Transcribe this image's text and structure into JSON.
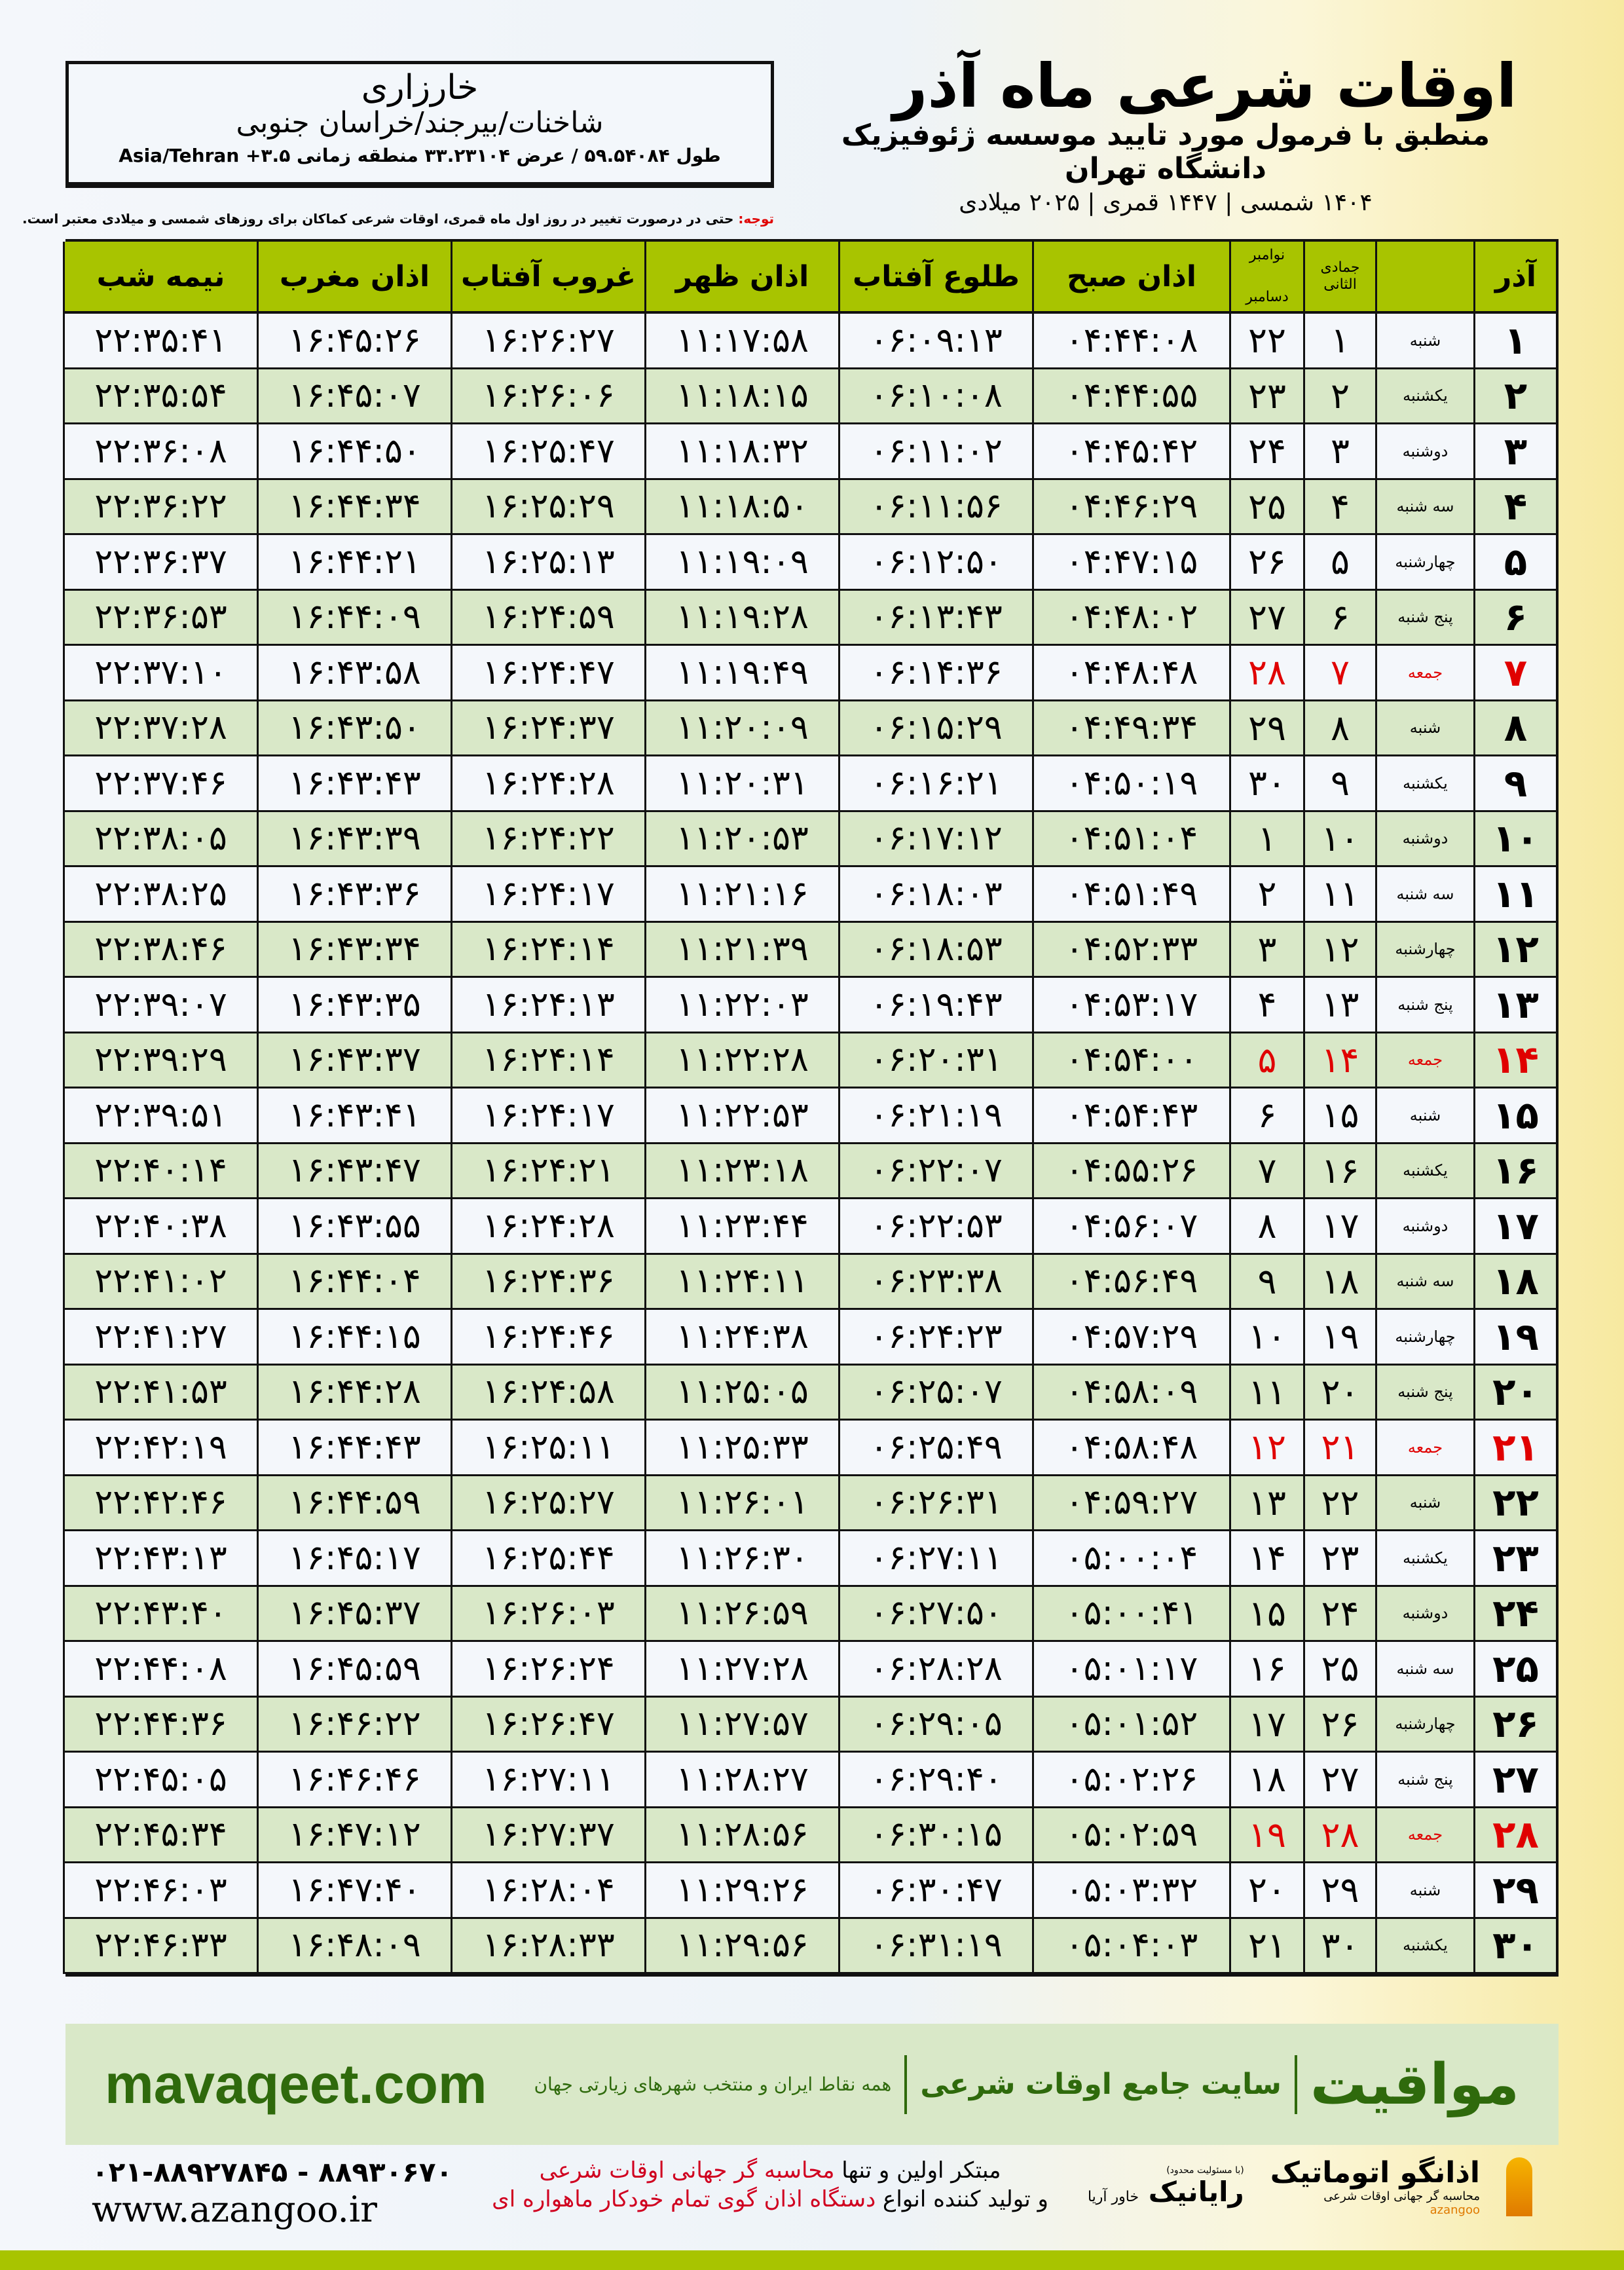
{
  "header": {
    "city": "خارزاری",
    "province": "شاخنات/بیرجند/خراسان جنوبی",
    "coords": "طول ۵۹.۵۴۰۸۴ / عرض ۳۳.۲۳۱۰۴ منطقه زمانی ۳.۵+ Asia/Tehran"
  },
  "title": {
    "main": "اوقات شرعی ماه آذر",
    "subtitle": "منطبق با فرمول مورد تایید موسسه ژئوفیزیک دانشگاه تهران",
    "years": "۱۴۰۴ شمسی | ۱۴۴۷ قمری | ۲۰۲۵ میلادی"
  },
  "note": {
    "label": "توجه:",
    "text": " حتی در درصورت تغییر در روز اول ماه قمری، اوقات شرعی کماکان برای روزهای شمسی و میلادی معتبر است."
  },
  "colors": {
    "header_green": "#a8c400",
    "row_green": "#d9e8c8",
    "friday": "#e00000",
    "brand_green": "#2f6a0c"
  },
  "table": {
    "headers": {
      "day": "آذر",
      "weekday": "",
      "hijri": "جمادی الثانی",
      "greg_top": "نوامبر",
      "greg_bottom": "دسامبر",
      "sobh": "اذان صبح",
      "tolu": "طلوع آفتاب",
      "zohr": "اذان ظهر",
      "ghorub": "غروب آفتاب",
      "maghreb": "اذان مغرب",
      "nime": "نیمه شب"
    },
    "rows": [
      [
        "۱",
        "شنبه",
        "۱",
        "۲۲",
        "۰۴:۴۴:۰۸",
        "۰۶:۰۹:۱۳",
        "۱۱:۱۷:۵۸",
        "۱۶:۲۶:۲۷",
        "۱۶:۴۵:۲۶",
        "۲۲:۳۵:۴۱"
      ],
      [
        "۲",
        "یکشنبه",
        "۲",
        "۲۳",
        "۰۴:۴۴:۵۵",
        "۰۶:۱۰:۰۸",
        "۱۱:۱۸:۱۵",
        "۱۶:۲۶:۰۶",
        "۱۶:۴۵:۰۷",
        "۲۲:۳۵:۵۴"
      ],
      [
        "۳",
        "دوشنبه",
        "۳",
        "۲۴",
        "۰۴:۴۵:۴۲",
        "۰۶:۱۱:۰۲",
        "۱۱:۱۸:۳۲",
        "۱۶:۲۵:۴۷",
        "۱۶:۴۴:۵۰",
        "۲۲:۳۶:۰۸"
      ],
      [
        "۴",
        "سه شنبه",
        "۴",
        "۲۵",
        "۰۴:۴۶:۲۹",
        "۰۶:۱۱:۵۶",
        "۱۱:۱۸:۵۰",
        "۱۶:۲۵:۲۹",
        "۱۶:۴۴:۳۴",
        "۲۲:۳۶:۲۲"
      ],
      [
        "۵",
        "چهارشنبه",
        "۵",
        "۲۶",
        "۰۴:۴۷:۱۵",
        "۰۶:۱۲:۵۰",
        "۱۱:۱۹:۰۹",
        "۱۶:۲۵:۱۳",
        "۱۶:۴۴:۲۱",
        "۲۲:۳۶:۳۷"
      ],
      [
        "۶",
        "پنج شنبه",
        "۶",
        "۲۷",
        "۰۴:۴۸:۰۲",
        "۰۶:۱۳:۴۳",
        "۱۱:۱۹:۲۸",
        "۱۶:۲۴:۵۹",
        "۱۶:۴۴:۰۹",
        "۲۲:۳۶:۵۳"
      ],
      [
        "۷",
        "جمعه",
        "۷",
        "۲۸",
        "۰۴:۴۸:۴۸",
        "۰۶:۱۴:۳۶",
        "۱۱:۱۹:۴۹",
        "۱۶:۲۴:۴۷",
        "۱۶:۴۳:۵۸",
        "۲۲:۳۷:۱۰"
      ],
      [
        "۸",
        "شنبه",
        "۸",
        "۲۹",
        "۰۴:۴۹:۳۴",
        "۰۶:۱۵:۲۹",
        "۱۱:۲۰:۰۹",
        "۱۶:۲۴:۳۷",
        "۱۶:۴۳:۵۰",
        "۲۲:۳۷:۲۸"
      ],
      [
        "۹",
        "یکشنبه",
        "۹",
        "۳۰",
        "۰۴:۵۰:۱۹",
        "۰۶:۱۶:۲۱",
        "۱۱:۲۰:۳۱",
        "۱۶:۲۴:۲۸",
        "۱۶:۴۳:۴۳",
        "۲۲:۳۷:۴۶"
      ],
      [
        "۱۰",
        "دوشنبه",
        "۱۰",
        "۱",
        "۰۴:۵۱:۰۴",
        "۰۶:۱۷:۱۲",
        "۱۱:۲۰:۵۳",
        "۱۶:۲۴:۲۲",
        "۱۶:۴۳:۳۹",
        "۲۲:۳۸:۰۵"
      ],
      [
        "۱۱",
        "سه شنبه",
        "۱۱",
        "۲",
        "۰۴:۵۱:۴۹",
        "۰۶:۱۸:۰۳",
        "۱۱:۲۱:۱۶",
        "۱۶:۲۴:۱۷",
        "۱۶:۴۳:۳۶",
        "۲۲:۳۸:۲۵"
      ],
      [
        "۱۲",
        "چهارشنبه",
        "۱۲",
        "۳",
        "۰۴:۵۲:۳۳",
        "۰۶:۱۸:۵۳",
        "۱۱:۲۱:۳۹",
        "۱۶:۲۴:۱۴",
        "۱۶:۴۳:۳۴",
        "۲۲:۳۸:۴۶"
      ],
      [
        "۱۳",
        "پنج شنبه",
        "۱۳",
        "۴",
        "۰۴:۵۳:۱۷",
        "۰۶:۱۹:۴۳",
        "۱۱:۲۲:۰۳",
        "۱۶:۲۴:۱۳",
        "۱۶:۴۳:۳۵",
        "۲۲:۳۹:۰۷"
      ],
      [
        "۱۴",
        "جمعه",
        "۱۴",
        "۵",
        "۰۴:۵۴:۰۰",
        "۰۶:۲۰:۳۱",
        "۱۱:۲۲:۲۸",
        "۱۶:۲۴:۱۴",
        "۱۶:۴۳:۳۷",
        "۲۲:۳۹:۲۹"
      ],
      [
        "۱۵",
        "شنبه",
        "۱۵",
        "۶",
        "۰۴:۵۴:۴۳",
        "۰۶:۲۱:۱۹",
        "۱۱:۲۲:۵۳",
        "۱۶:۲۴:۱۷",
        "۱۶:۴۳:۴۱",
        "۲۲:۳۹:۵۱"
      ],
      [
        "۱۶",
        "یکشنبه",
        "۱۶",
        "۷",
        "۰۴:۵۵:۲۶",
        "۰۶:۲۲:۰۷",
        "۱۱:۲۳:۱۸",
        "۱۶:۲۴:۲۱",
        "۱۶:۴۳:۴۷",
        "۲۲:۴۰:۱۴"
      ],
      [
        "۱۷",
        "دوشنبه",
        "۱۷",
        "۸",
        "۰۴:۵۶:۰۷",
        "۰۶:۲۲:۵۳",
        "۱۱:۲۳:۴۴",
        "۱۶:۲۴:۲۸",
        "۱۶:۴۳:۵۵",
        "۲۲:۴۰:۳۸"
      ],
      [
        "۱۸",
        "سه شنبه",
        "۱۸",
        "۹",
        "۰۴:۵۶:۴۹",
        "۰۶:۲۳:۳۸",
        "۱۱:۲۴:۱۱",
        "۱۶:۲۴:۳۶",
        "۱۶:۴۴:۰۴",
        "۲۲:۴۱:۰۲"
      ],
      [
        "۱۹",
        "چهارشنبه",
        "۱۹",
        "۱۰",
        "۰۴:۵۷:۲۹",
        "۰۶:۲۴:۲۳",
        "۱۱:۲۴:۳۸",
        "۱۶:۲۴:۴۶",
        "۱۶:۴۴:۱۵",
        "۲۲:۴۱:۲۷"
      ],
      [
        "۲۰",
        "پنج شنبه",
        "۲۰",
        "۱۱",
        "۰۴:۵۸:۰۹",
        "۰۶:۲۵:۰۷",
        "۱۱:۲۵:۰۵",
        "۱۶:۲۴:۵۸",
        "۱۶:۴۴:۲۸",
        "۲۲:۴۱:۵۳"
      ],
      [
        "۲۱",
        "جمعه",
        "۲۱",
        "۱۲",
        "۰۴:۵۸:۴۸",
        "۰۶:۲۵:۴۹",
        "۱۱:۲۵:۳۳",
        "۱۶:۲۵:۱۱",
        "۱۶:۴۴:۴۳",
        "۲۲:۴۲:۱۹"
      ],
      [
        "۲۲",
        "شنبه",
        "۲۲",
        "۱۳",
        "۰۴:۵۹:۲۷",
        "۰۶:۲۶:۳۱",
        "۱۱:۲۶:۰۱",
        "۱۶:۲۵:۲۷",
        "۱۶:۴۴:۵۹",
        "۲۲:۴۲:۴۶"
      ],
      [
        "۲۳",
        "یکشنبه",
        "۲۳",
        "۱۴",
        "۰۵:۰۰:۰۴",
        "۰۶:۲۷:۱۱",
        "۱۱:۲۶:۳۰",
        "۱۶:۲۵:۴۴",
        "۱۶:۴۵:۱۷",
        "۲۲:۴۳:۱۳"
      ],
      [
        "۲۴",
        "دوشنبه",
        "۲۴",
        "۱۵",
        "۰۵:۰۰:۴۱",
        "۰۶:۲۷:۵۰",
        "۱۱:۲۶:۵۹",
        "۱۶:۲۶:۰۳",
        "۱۶:۴۵:۳۷",
        "۲۲:۴۳:۴۰"
      ],
      [
        "۲۵",
        "سه شنبه",
        "۲۵",
        "۱۶",
        "۰۵:۰۱:۱۷",
        "۰۶:۲۸:۲۸",
        "۱۱:۲۷:۲۸",
        "۱۶:۲۶:۲۴",
        "۱۶:۴۵:۵۹",
        "۲۲:۴۴:۰۸"
      ],
      [
        "۲۶",
        "چهارشنبه",
        "۲۶",
        "۱۷",
        "۰۵:۰۱:۵۲",
        "۰۶:۲۹:۰۵",
        "۱۱:۲۷:۵۷",
        "۱۶:۲۶:۴۷",
        "۱۶:۴۶:۲۲",
        "۲۲:۴۴:۳۶"
      ],
      [
        "۲۷",
        "پنج شنبه",
        "۲۷",
        "۱۸",
        "۰۵:۰۲:۲۶",
        "۰۶:۲۹:۴۰",
        "۱۱:۲۸:۲۷",
        "۱۶:۲۷:۱۱",
        "۱۶:۴۶:۴۶",
        "۲۲:۴۵:۰۵"
      ],
      [
        "۲۸",
        "جمعه",
        "۲۸",
        "۱۹",
        "۰۵:۰۲:۵۹",
        "۰۶:۳۰:۱۵",
        "۱۱:۲۸:۵۶",
        "۱۶:۲۷:۳۷",
        "۱۶:۴۷:۱۲",
        "۲۲:۴۵:۳۴"
      ],
      [
        "۲۹",
        "شنبه",
        "۲۹",
        "۲۰",
        "۰۵:۰۳:۳۲",
        "۰۶:۳۰:۴۷",
        "۱۱:۲۹:۲۶",
        "۱۶:۲۸:۰۴",
        "۱۶:۴۷:۴۰",
        "۲۲:۴۶:۰۳"
      ],
      [
        "۳۰",
        "یکشنبه",
        "۳۰",
        "۲۱",
        "۰۵:۰۴:۰۳",
        "۰۶:۳۱:۱۹",
        "۱۱:۲۹:۵۶",
        "۱۶:۲۸:۳۳",
        "۱۶:۴۸:۰۹",
        "۲۲:۴۶:۳۳"
      ]
    ],
    "friday_label": "جمعه"
  },
  "footer": {
    "brand": "مواقیت",
    "tagline": "سایت جامع اوقات شرعی",
    "tagline2": "همه نقاط ایران و منتخب شهرهای زیارتی جهان",
    "site": "mavaqeet.com"
  },
  "contact": {
    "phone": "۰۲۱-۸۸۹۲۷۸۴۵ - ۸۸۹۳۰۶۷۰",
    "web": "www.azangoo.ir",
    "slogan1_a": "مبتکر اولین و تنها ",
    "slogan1_b": "محاسبه گر جهانی اوقات شرعی",
    "slogan2_a": "و تولید کننده انواع ",
    "slogan2_b": "دستگاه اذان گوی تمام خودکار ماهواره ای",
    "logo_rayanik": "رایانیک",
    "logo_rayanik_sub": "خاور آریا",
    "logo_rayanik_note": "(با مسئولیت محدود)",
    "logo_azangoo": "اذانگو اتوماتیک",
    "logo_azangoo_sub": "محاسبه گر جهانی اوقات شرعی",
    "logo_azangoo_en": "azangoo"
  }
}
